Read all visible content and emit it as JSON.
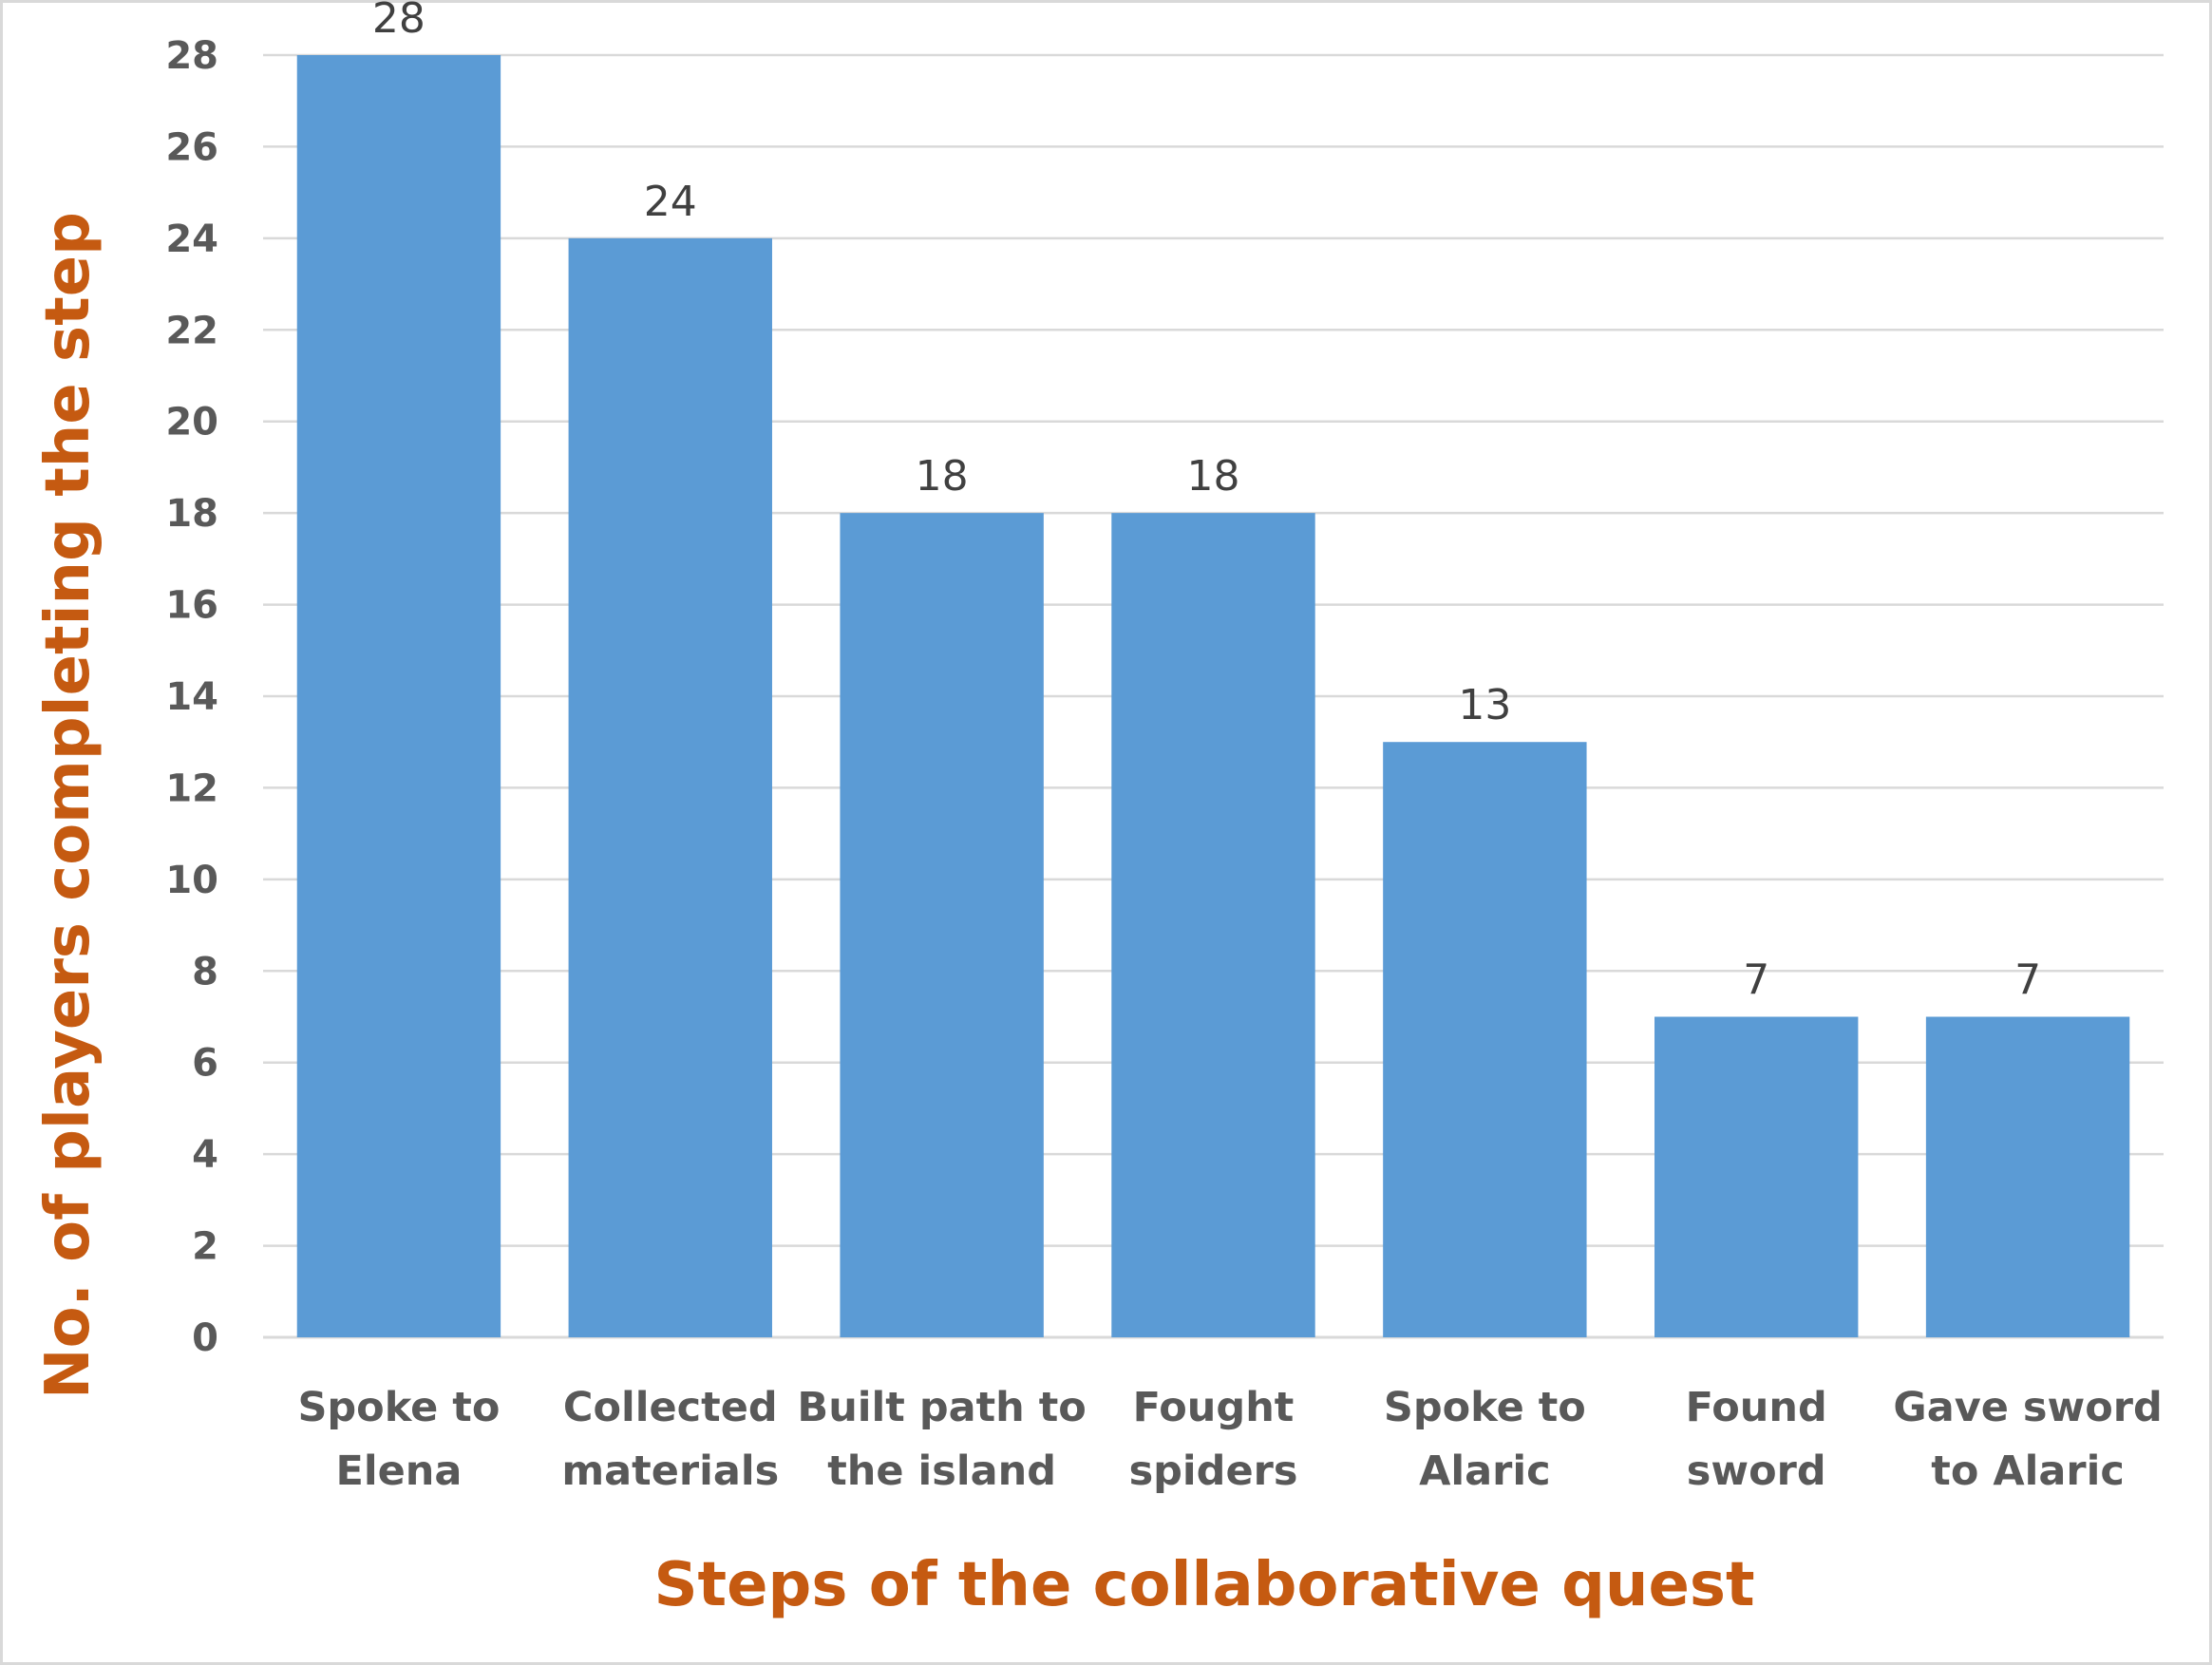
{
  "chart_data": {
    "type": "bar",
    "title": "",
    "xlabel": "Steps of the collaborative quest",
    "ylabel": "No. of players completing the step",
    "categories": [
      [
        "Spoke to",
        "Elena"
      ],
      [
        "Collected",
        "materials"
      ],
      [
        "Built path to",
        "the island"
      ],
      [
        "Fought",
        "spiders"
      ],
      [
        "Spoke to",
        "Alaric"
      ],
      [
        "Found",
        "sword"
      ],
      [
        "Gave sword",
        "to Alaric"
      ]
    ],
    "values": [
      28,
      24,
      18,
      18,
      13,
      7,
      7
    ],
    "data_labels": [
      "28",
      "24",
      "18",
      "18",
      "13",
      "7",
      "7"
    ],
    "ylim": [
      0,
      28
    ],
    "yticks": [
      0,
      2,
      4,
      6,
      8,
      10,
      12,
      14,
      16,
      18,
      20,
      22,
      24,
      26,
      28
    ],
    "grid": true,
    "legend": "none",
    "colors": {
      "bar": "#5b9bd5",
      "axis_title": "#c55a11",
      "tick_text": "#595959",
      "grid": "#d9d9d9"
    }
  }
}
